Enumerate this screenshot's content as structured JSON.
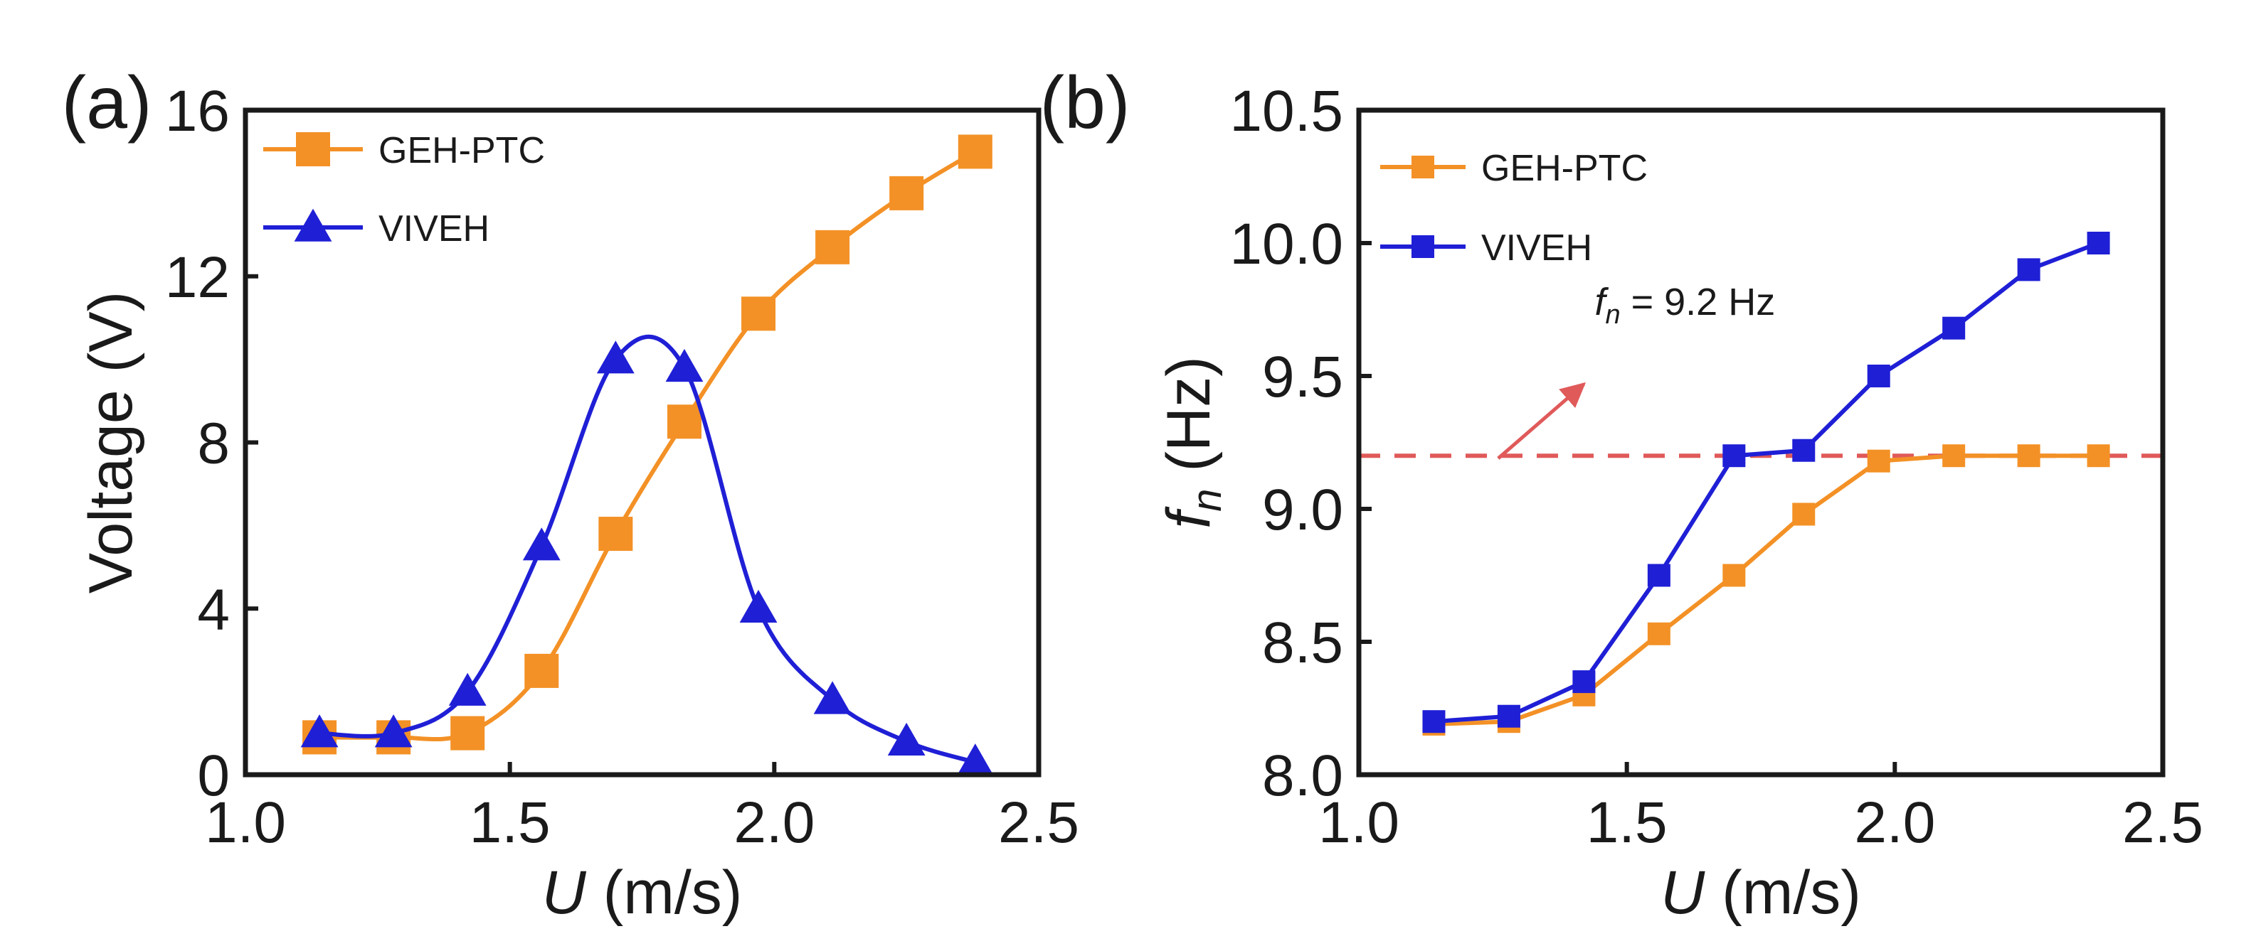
{
  "colors": {
    "orange": "#F39126",
    "blue": "#1F1FD6",
    "ref": "#E05A5A",
    "axis": "#1a1a1a"
  },
  "chart_data": [
    {
      "id": "a",
      "panel_label": "(a)",
      "type": "line",
      "xlabel_var": "U",
      "xlabel_unit": " (m/s)",
      "ylabel": "Voltage (V)",
      "xlim": [
        1.0,
        2.5
      ],
      "ylim": [
        0,
        16
      ],
      "xticks": [
        "1.0",
        "1.5",
        "2.0",
        "2.5"
      ],
      "xtick_values": [
        1.0,
        1.5,
        2.0,
        2.5
      ],
      "yticks": [
        "0",
        "4",
        "8",
        "12",
        "16"
      ],
      "ytick_values": [
        0,
        4,
        8,
        12,
        16
      ],
      "legend_position": "top-left",
      "series": [
        {
          "name": "GEH-PTC",
          "color": "#F39126",
          "marker": "square",
          "x": [
            1.14,
            1.28,
            1.42,
            1.56,
            1.7,
            1.83,
            1.97,
            2.11,
            2.25,
            2.38
          ],
          "y": [
            0.9,
            0.9,
            1.0,
            2.5,
            5.8,
            8.5,
            11.1,
            12.7,
            14.0,
            15.0
          ]
        },
        {
          "name": "VIVEH",
          "color": "#1F1FD6",
          "marker": "triangle",
          "x": [
            1.14,
            1.28,
            1.42,
            1.56,
            1.7,
            1.83,
            1.97,
            2.11,
            2.25,
            2.38
          ],
          "y": [
            1.0,
            1.0,
            2.0,
            5.5,
            10.0,
            9.8,
            4.0,
            1.8,
            0.8,
            0.3
          ]
        }
      ]
    },
    {
      "id": "b",
      "panel_label": "(b)",
      "type": "line",
      "xlabel_var": "U",
      "xlabel_unit": " (m/s)",
      "ylabel_var": "f",
      "ylabel_sub": "n",
      "ylabel_unit": " (Hz)",
      "xlim": [
        1.0,
        2.5
      ],
      "ylim": [
        8.0,
        10.5
      ],
      "xticks": [
        "1.0",
        "1.5",
        "2.0",
        "2.5"
      ],
      "xtick_values": [
        1.0,
        1.5,
        2.0,
        2.5
      ],
      "yticks": [
        "8.0",
        "8.5",
        "9.0",
        "9.5",
        "10.0",
        "10.5"
      ],
      "ytick_values": [
        8.0,
        8.5,
        9.0,
        9.5,
        10.0,
        10.5
      ],
      "legend_position": "top-left",
      "series": [
        {
          "name": "GEH-PTC",
          "color": "#F39126",
          "marker": "square",
          "x": [
            1.14,
            1.28,
            1.42,
            1.56,
            1.7,
            1.83,
            1.97,
            2.11,
            2.25,
            2.38
          ],
          "y": [
            8.19,
            8.2,
            8.3,
            8.53,
            8.75,
            8.98,
            9.18,
            9.2,
            9.2,
            9.2
          ]
        },
        {
          "name": "VIVEH",
          "color": "#1F1FD6",
          "marker": "square",
          "x": [
            1.14,
            1.28,
            1.42,
            1.56,
            1.7,
            1.83,
            1.97,
            2.11,
            2.25,
            2.38
          ],
          "y": [
            8.2,
            8.22,
            8.35,
            8.75,
            9.2,
            9.22,
            9.5,
            9.68,
            9.9,
            10.0
          ]
        }
      ],
      "reference_line": {
        "y": 9.2,
        "style": "dashed",
        "color": "#E05A5A"
      },
      "annotation": {
        "var": "f",
        "sub": "n",
        "value": " = 9.2 Hz",
        "text_at": [
          1.44,
          9.73
        ],
        "arrow_from": [
          1.26,
          9.19
        ],
        "arrow_to": [
          1.42,
          9.47
        ]
      }
    }
  ]
}
